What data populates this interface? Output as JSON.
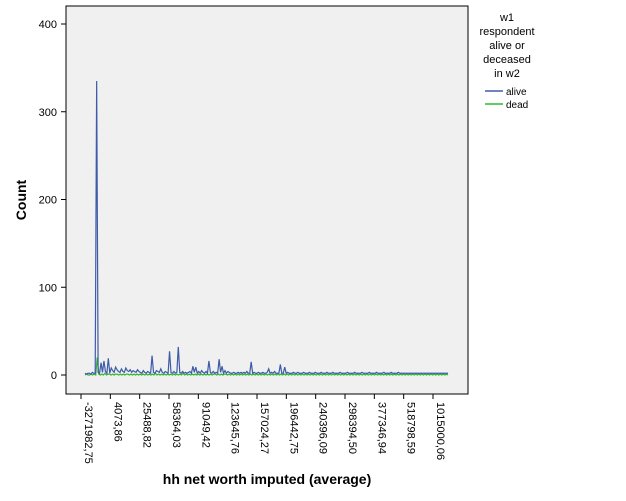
{
  "chart_data": {
    "type": "line",
    "title": "",
    "xlabel": "hh net worth imputed (average)",
    "ylabel": "Count",
    "ylim": [
      0,
      400
    ],
    "yticks": [
      0,
      100,
      200,
      300,
      400
    ],
    "xtick_labels": [
      "-3271982,75",
      "4073,86",
      "25488,82",
      "58364,03",
      "91049,42",
      "123645,76",
      "157024,27",
      "196442,75",
      "240396,09",
      "298394,50",
      "377346,94",
      "518798,59",
      "1015000,06"
    ],
    "grid": false,
    "legend": {
      "title": "w1 respondent alive or deceased in w2",
      "title_lines": [
        "w1",
        "respondent",
        "alive or",
        "deceased",
        "in w2"
      ],
      "placement": "right",
      "entries": [
        {
          "name": "alive",
          "color": "#3e5ba9"
        },
        {
          "name": "dead",
          "color": "#2eb82e"
        }
      ]
    },
    "series": [
      {
        "name": "alive",
        "color": "#3e5ba9",
        "values": [
          2,
          1,
          2,
          2,
          1,
          3,
          2,
          2,
          335,
          3,
          2,
          14,
          3,
          16,
          4,
          2,
          19,
          2,
          8,
          5,
          3,
          9,
          6,
          4,
          3,
          7,
          4,
          3,
          8,
          5,
          4,
          6,
          3,
          5,
          4,
          3,
          6,
          4,
          3,
          2,
          5,
          3,
          2,
          4,
          3,
          2,
          22,
          3,
          2,
          5,
          4,
          3,
          7,
          3,
          2,
          4,
          3,
          2,
          27,
          3,
          2,
          4,
          2,
          3,
          32,
          3,
          2,
          4,
          2,
          3,
          2,
          3,
          4,
          2,
          10,
          3,
          9,
          2,
          4,
          2,
          5,
          3,
          2,
          4,
          2,
          16,
          3,
          2,
          4,
          2,
          3,
          2,
          18,
          3,
          10,
          2,
          5,
          2,
          4,
          3,
          2,
          2,
          3,
          2,
          2,
          3,
          2,
          3,
          2,
          3,
          2,
          4,
          2,
          2,
          15,
          2,
          3,
          2,
          2,
          3,
          2,
          2,
          3,
          2,
          2,
          3,
          7,
          2,
          3,
          2,
          4,
          2,
          2,
          2,
          12,
          2,
          2,
          9,
          2,
          3,
          2,
          2,
          2,
          3,
          2,
          2,
          3,
          2,
          2,
          2,
          3,
          2,
          2,
          2,
          3,
          2,
          2,
          2,
          3,
          2,
          2,
          2,
          3,
          2,
          2,
          2,
          3,
          2,
          2,
          2,
          3,
          2,
          2,
          2,
          2,
          3,
          2,
          2,
          2,
          2,
          3,
          2,
          2,
          2,
          2,
          3,
          2,
          2,
          2,
          2,
          3,
          2,
          2,
          2,
          2,
          3,
          2,
          2,
          2,
          2,
          3,
          2,
          2,
          2,
          2,
          3,
          2,
          2,
          2,
          2,
          3,
          2,
          2,
          2,
          2,
          3,
          2,
          2,
          2,
          2,
          2,
          2,
          2,
          2,
          2,
          2,
          2,
          2,
          2,
          2,
          2,
          2,
          2,
          2,
          2,
          2,
          2,
          2,
          2,
          2,
          2,
          2,
          2,
          2,
          2,
          2,
          2,
          2,
          2,
          2
        ]
      },
      {
        "name": "dead",
        "color": "#2eb82e",
        "values": [
          0,
          1,
          0,
          0,
          1,
          0,
          1,
          0,
          20,
          1,
          0,
          1,
          0,
          2,
          0,
          1,
          1,
          0,
          1,
          0,
          1,
          1,
          0,
          1,
          0,
          1,
          0,
          1,
          1,
          0,
          1,
          0,
          1,
          0,
          1,
          0,
          1,
          0,
          1,
          0,
          1,
          0,
          1,
          0,
          1,
          0,
          2,
          0,
          1,
          0,
          1,
          0,
          1,
          0,
          1,
          0,
          1,
          0,
          1,
          0,
          1,
          0,
          1,
          0,
          2,
          0,
          1,
          0,
          1,
          0,
          1,
          0,
          1,
          0,
          1,
          0,
          1,
          0,
          1,
          0,
          1,
          0,
          1,
          0,
          1,
          1,
          0,
          1,
          0,
          1,
          0,
          1,
          1,
          0,
          1,
          0,
          1,
          0,
          1,
          0,
          1,
          0,
          1,
          0,
          1,
          0,
          1,
          0,
          1,
          0,
          1,
          0,
          1,
          0,
          1,
          0,
          1,
          0,
          1,
          0,
          1,
          0,
          1,
          0,
          1,
          0,
          1,
          0,
          1,
          0,
          1,
          0,
          1,
          0,
          1,
          0,
          1,
          0,
          1,
          0,
          1,
          0,
          1,
          0,
          1,
          0,
          1,
          0,
          1,
          0,
          1,
          0,
          1,
          0,
          1,
          0,
          1,
          0,
          1,
          0,
          1,
          0,
          1,
          0,
          1,
          0,
          1,
          0,
          1,
          0,
          1,
          0,
          1,
          0,
          1,
          0,
          1,
          0,
          1,
          0,
          1,
          0,
          1,
          0,
          1,
          0,
          1,
          0,
          1,
          0,
          1,
          0,
          1,
          0,
          1,
          0,
          1,
          0,
          1,
          0,
          1,
          0,
          1,
          0,
          1,
          0,
          1,
          0,
          1,
          0,
          1,
          0,
          1,
          0,
          1,
          0,
          1,
          0,
          1,
          0,
          1,
          0,
          1,
          0,
          1,
          0,
          1,
          0,
          1,
          0,
          1,
          0,
          1,
          0,
          1,
          0,
          1,
          0
        ]
      }
    ]
  }
}
